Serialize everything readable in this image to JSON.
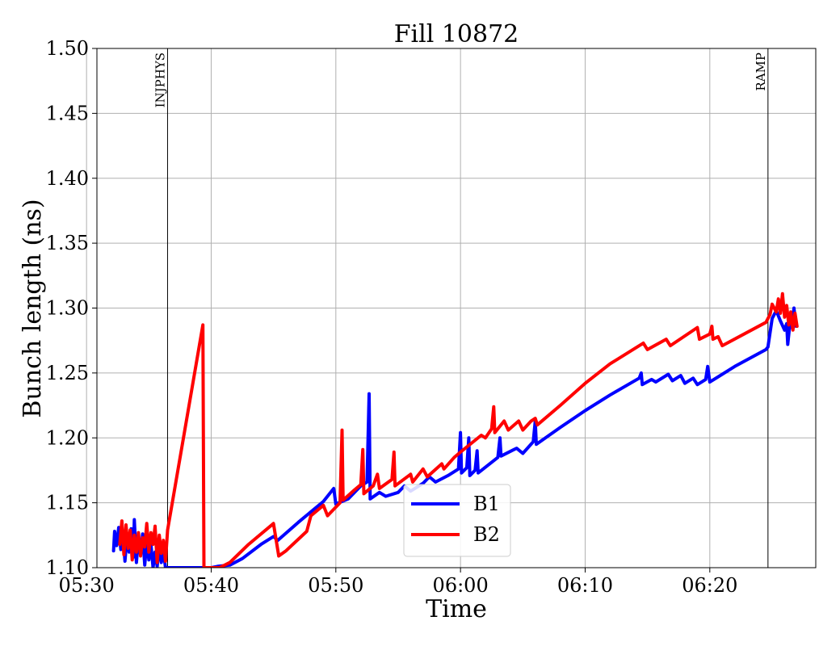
{
  "chart_data": {
    "type": "line",
    "title": "Fill 10872",
    "xlabel": "Time",
    "ylabel": "Bunch length (ns)",
    "xlim": [
      "05:30:50",
      "06:28:30"
    ],
    "ylim": [
      1.1,
      1.5
    ],
    "grid": true,
    "legend_position": "lower-center",
    "x_ticks": [
      "05:30",
      "05:40",
      "05:50",
      "06:00",
      "06:10",
      "06:20"
    ],
    "y_ticks": [
      "1.10",
      "1.15",
      "1.20",
      "1.25",
      "1.30",
      "1.35",
      "1.40",
      "1.45",
      "1.50"
    ],
    "events": [
      {
        "label": "INJPHYS",
        "time": "05:36:30"
      },
      {
        "label": "RAMP",
        "time": "06:24:40"
      }
    ],
    "series": [
      {
        "name": "B1",
        "color": "#0000ff",
        "points": [
          [
            "05:32:10",
            1.113
          ],
          [
            "05:32:15",
            1.128
          ],
          [
            "05:32:25",
            1.117
          ],
          [
            "05:32:35",
            1.131
          ],
          [
            "05:32:45",
            1.114
          ],
          [
            "05:32:55",
            1.127
          ],
          [
            "05:33:05",
            1.105
          ],
          [
            "05:33:15",
            1.124
          ],
          [
            "05:33:25",
            1.112
          ],
          [
            "05:33:35",
            1.13
          ],
          [
            "05:33:45",
            1.108
          ],
          [
            "05:33:50",
            1.137
          ],
          [
            "05:34:00",
            1.104
          ],
          [
            "05:34:10",
            1.123
          ],
          [
            "05:34:20",
            1.11
          ],
          [
            "05:34:30",
            1.126
          ],
          [
            "05:34:40",
            1.102
          ],
          [
            "05:34:50",
            1.12
          ],
          [
            "05:35:00",
            1.106
          ],
          [
            "05:35:10",
            1.118
          ],
          [
            "05:35:20",
            1.1
          ],
          [
            "05:35:30",
            1.112
          ],
          [
            "05:35:40",
            1.101
          ],
          [
            "05:35:50",
            1.116
          ],
          [
            "05:36:00",
            1.104
          ],
          [
            "05:36:10",
            1.113
          ],
          [
            "05:36:20",
            1.1
          ],
          [
            "05:40:00",
            1.1
          ],
          [
            "05:40:30",
            1.101
          ],
          [
            "05:41:30",
            1.102
          ],
          [
            "05:42:30",
            1.107
          ],
          [
            "05:44:00",
            1.118
          ],
          [
            "05:45:00",
            1.124
          ],
          [
            "05:45:20",
            1.121
          ],
          [
            "05:47:00",
            1.135
          ],
          [
            "05:49:00",
            1.151
          ],
          [
            "05:49:50",
            1.161
          ],
          [
            "05:50:00",
            1.149
          ],
          [
            "05:51:00",
            1.153
          ],
          [
            "05:52:00",
            1.163
          ],
          [
            "05:52:30",
            1.166
          ],
          [
            "05:52:40",
            1.234
          ],
          [
            "05:52:45",
            1.153
          ],
          [
            "05:53:30",
            1.158
          ],
          [
            "05:54:00",
            1.155
          ],
          [
            "05:55:00",
            1.158
          ],
          [
            "05:55:30",
            1.163
          ],
          [
            "05:56:00",
            1.159
          ],
          [
            "05:57:00",
            1.165
          ],
          [
            "05:57:30",
            1.17
          ],
          [
            "05:58:00",
            1.166
          ],
          [
            "05:59:00",
            1.171
          ],
          [
            "05:59:50",
            1.176
          ],
          [
            "06:00:00",
            1.204
          ],
          [
            "06:00:05",
            1.173
          ],
          [
            "06:00:30",
            1.177
          ],
          [
            "06:00:40",
            1.2
          ],
          [
            "06:00:45",
            1.171
          ],
          [
            "06:01:10",
            1.175
          ],
          [
            "06:01:20",
            1.19
          ],
          [
            "06:01:25",
            1.173
          ],
          [
            "06:03:00",
            1.185
          ],
          [
            "06:03:10",
            1.2
          ],
          [
            "06:03:15",
            1.186
          ],
          [
            "06:04:30",
            1.192
          ],
          [
            "06:05:00",
            1.188
          ],
          [
            "06:05:50",
            1.197
          ],
          [
            "06:06:00",
            1.213
          ],
          [
            "06:06:05",
            1.195
          ],
          [
            "06:08:00",
            1.208
          ],
          [
            "06:10:00",
            1.221
          ],
          [
            "06:12:00",
            1.233
          ],
          [
            "06:14:20",
            1.246
          ],
          [
            "06:14:30",
            1.25
          ],
          [
            "06:14:35",
            1.241
          ],
          [
            "06:15:20",
            1.245
          ],
          [
            "06:15:40",
            1.243
          ],
          [
            "06:16:40",
            1.249
          ],
          [
            "06:17:00",
            1.244
          ],
          [
            "06:17:40",
            1.248
          ],
          [
            "06:18:00",
            1.242
          ],
          [
            "06:18:40",
            1.246
          ],
          [
            "06:19:00",
            1.241
          ],
          [
            "06:19:40",
            1.245
          ],
          [
            "06:19:50",
            1.255
          ],
          [
            "06:20:00",
            1.243
          ],
          [
            "06:22:00",
            1.255
          ],
          [
            "06:24:30",
            1.268
          ],
          [
            "06:24:40",
            1.27
          ],
          [
            "06:25:00",
            1.292
          ],
          [
            "06:25:20",
            1.298
          ],
          [
            "06:25:40",
            1.29
          ],
          [
            "06:26:00",
            1.283
          ],
          [
            "06:26:10",
            1.288
          ],
          [
            "06:26:15",
            1.272
          ],
          [
            "06:26:25",
            1.287
          ],
          [
            "06:26:35",
            1.285
          ],
          [
            "06:26:45",
            1.3
          ],
          [
            "06:26:55",
            1.286
          ]
        ]
      },
      {
        "name": "B2",
        "color": "#ff0000",
        "points": [
          [
            "05:32:40",
            1.118
          ],
          [
            "05:32:50",
            1.136
          ],
          [
            "05:33:00",
            1.11
          ],
          [
            "05:33:10",
            1.133
          ],
          [
            "05:33:20",
            1.115
          ],
          [
            "05:33:30",
            1.129
          ],
          [
            "05:33:40",
            1.106
          ],
          [
            "05:33:50",
            1.125
          ],
          [
            "05:34:00",
            1.112
          ],
          [
            "05:34:10",
            1.127
          ],
          [
            "05:34:20",
            1.109
          ],
          [
            "05:34:30",
            1.123
          ],
          [
            "05:34:40",
            1.116
          ],
          [
            "05:34:50",
            1.134
          ],
          [
            "05:35:00",
            1.112
          ],
          [
            "05:35:10",
            1.127
          ],
          [
            "05:35:20",
            1.118
          ],
          [
            "05:35:30",
            1.132
          ],
          [
            "05:35:40",
            1.104
          ],
          [
            "05:35:50",
            1.125
          ],
          [
            "05:36:00",
            1.111
          ],
          [
            "05:36:10",
            1.121
          ],
          [
            "05:36:20",
            1.105
          ],
          [
            "05:36:30",
            1.129
          ],
          [
            "05:39:20",
            1.287
          ],
          [
            "05:39:25",
            1.1
          ],
          [
            "05:40:40",
            1.1
          ],
          [
            "05:41:30",
            1.104
          ],
          [
            "05:43:00",
            1.118
          ],
          [
            "05:45:00",
            1.134
          ],
          [
            "05:45:25",
            1.109
          ],
          [
            "05:46:00",
            1.113
          ],
          [
            "05:47:40",
            1.128
          ],
          [
            "05:48:00",
            1.14
          ],
          [
            "05:49:00",
            1.148
          ],
          [
            "05:49:20",
            1.14
          ],
          [
            "05:50:20",
            1.15
          ],
          [
            "05:50:30",
            1.206
          ],
          [
            "05:50:35",
            1.152
          ],
          [
            "05:51:30",
            1.16
          ],
          [
            "05:52:00",
            1.164
          ],
          [
            "05:52:10",
            1.191
          ],
          [
            "05:52:15",
            1.157
          ],
          [
            "05:53:00",
            1.163
          ],
          [
            "05:53:20",
            1.172
          ],
          [
            "05:53:30",
            1.161
          ],
          [
            "05:54:30",
            1.168
          ],
          [
            "05:54:40",
            1.189
          ],
          [
            "05:54:45",
            1.163
          ],
          [
            "05:56:00",
            1.172
          ],
          [
            "05:56:10",
            1.166
          ],
          [
            "05:57:00",
            1.176
          ],
          [
            "05:57:20",
            1.17
          ],
          [
            "05:58:30",
            1.18
          ],
          [
            "05:58:40",
            1.176
          ],
          [
            "05:59:30",
            1.185
          ],
          [
            "06:00:00",
            1.189
          ],
          [
            "06:01:40",
            1.202
          ],
          [
            "06:02:00",
            1.2
          ],
          [
            "06:02:30",
            1.207
          ],
          [
            "06:02:40",
            1.224
          ],
          [
            "06:02:45",
            1.204
          ],
          [
            "06:03:30",
            1.213
          ],
          [
            "06:03:50",
            1.206
          ],
          [
            "06:04:40",
            1.213
          ],
          [
            "06:05:00",
            1.206
          ],
          [
            "06:05:40",
            1.213
          ],
          [
            "06:06:00",
            1.215
          ],
          [
            "06:06:10",
            1.21
          ],
          [
            "06:08:00",
            1.225
          ],
          [
            "06:10:00",
            1.242
          ],
          [
            "06:12:00",
            1.257
          ],
          [
            "06:14:40",
            1.273
          ],
          [
            "06:15:00",
            1.268
          ],
          [
            "06:16:30",
            1.276
          ],
          [
            "06:16:50",
            1.271
          ],
          [
            "06:19:00",
            1.285
          ],
          [
            "06:19:10",
            1.276
          ],
          [
            "06:20:00",
            1.28
          ],
          [
            "06:20:10",
            1.286
          ],
          [
            "06:20:15",
            1.276
          ],
          [
            "06:20:40",
            1.278
          ],
          [
            "06:21:00",
            1.271
          ],
          [
            "06:24:30",
            1.289
          ],
          [
            "06:24:50",
            1.295
          ],
          [
            "06:25:00",
            1.303
          ],
          [
            "06:25:20",
            1.297
          ],
          [
            "06:25:30",
            1.307
          ],
          [
            "06:25:40",
            1.296
          ],
          [
            "06:25:50",
            1.311
          ],
          [
            "06:26:00",
            1.293
          ],
          [
            "06:26:10",
            1.302
          ],
          [
            "06:26:20",
            1.287
          ],
          [
            "06:26:30",
            1.297
          ],
          [
            "06:26:40",
            1.283
          ],
          [
            "06:26:50",
            1.296
          ],
          [
            "06:27:00",
            1.286
          ]
        ]
      }
    ]
  }
}
